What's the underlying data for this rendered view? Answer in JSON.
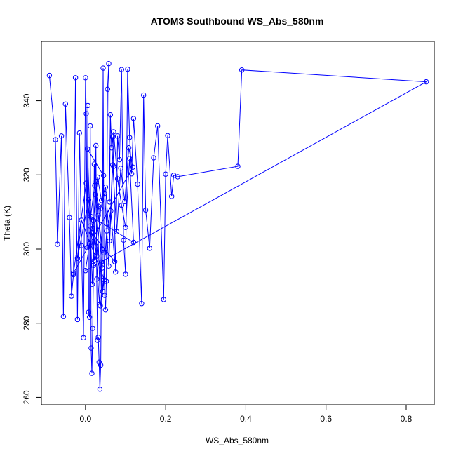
{
  "chart_data": {
    "type": "line",
    "title": "ATOM3 Southbound WS_Abs_580nm",
    "xlabel": "WS_Abs_580nm",
    "ylabel": "Theta (K)",
    "xlim": [
      -0.11,
      0.87
    ],
    "ylim": [
      258,
      356
    ],
    "xticks": [
      0.0,
      0.2,
      0.4,
      0.6,
      0.8
    ],
    "xtick_labels": [
      "0.0",
      "0.2",
      "0.4",
      "0.6",
      "0.8"
    ],
    "yticks": [
      260,
      280,
      300,
      320,
      340
    ],
    "ytick_labels": [
      "260",
      "280",
      "300",
      "320",
      "340"
    ],
    "grid": false,
    "series": [
      {
        "color": "#0000ff",
        "marker": "open-circle",
        "x": [
          -0.09,
          -0.075,
          -0.07,
          -0.06,
          -0.055,
          -0.05,
          -0.04,
          -0.035,
          -0.03,
          -0.025,
          -0.02,
          -0.015,
          -0.01,
          -0.005,
          0.0,
          0.002,
          0.004,
          0.006,
          0.008,
          0.01,
          0.012,
          0.014,
          0.016,
          0.018,
          0.02,
          0.022,
          0.024,
          0.026,
          0.028,
          0.03,
          0.032,
          0.034,
          0.036,
          0.038,
          0.04,
          0.042,
          0.044,
          0.046,
          0.048,
          0.05,
          0.052,
          0.055,
          0.058,
          0.06,
          0.062,
          0.065,
          0.068,
          0.07,
          0.075,
          0.08,
          0.085,
          0.09,
          0.095,
          0.1,
          0.105,
          0.11,
          0.115,
          0.12,
          0.13,
          0.14,
          0.145,
          0.15,
          0.16,
          0.17,
          0.18,
          0.195,
          0.2,
          0.205,
          0.215,
          0.22,
          0.23,
          0.38,
          0.39,
          0.85,
          0.0,
          0.01,
          0.02,
          0.03,
          0.04,
          0.05,
          0.06,
          0.07,
          0.08,
          0.09,
          0.1,
          0.11,
          0.12,
          0.013,
          0.023,
          0.033,
          0.043,
          0.053,
          0.063,
          0.073,
          0.015,
          0.025,
          0.035,
          0.045,
          0.005,
          0.017,
          0.027,
          0.037,
          0.047,
          -0.01,
          -0.02,
          0.008,
          0.018,
          0.028,
          0.038,
          0.048,
          0.058,
          0.068,
          0.078,
          0.088,
          0.098,
          0.108,
          0.118,
          -0.03,
          0.002,
          0.012,
          0.022,
          0.032,
          0.042
        ],
        "y": [
          346.8,
          329.5,
          301.3,
          330.5,
          281.8,
          339.1,
          308.5,
          287.3,
          293.1,
          346.2,
          281.0,
          331.3,
          300.9,
          276.1,
          346.2,
          336.5,
          300.4,
          338.7,
          283.0,
          281.6,
          333.2,
          273.3,
          266.5,
          278.6,
          295.6,
          322.9,
          314.7,
          327.9,
          291.9,
          275.4,
          276.2,
          269.5,
          262.2,
          268.7,
          296.5,
          294.9,
          348.8,
          299.0,
          287.5,
          283.6,
          291.3,
          343.1,
          350.0,
          312.7,
          336.2,
          327.3,
          330.2,
          322.3,
          293.8,
          330.5,
          324.1,
          348.4,
          302.4,
          293.2,
          348.5,
          330.1,
          320.3,
          335.2,
          317.5,
          285.3,
          341.5,
          310.5,
          300.2,
          324.6,
          333.2,
          286.4,
          320.2,
          330.6,
          314.2,
          319.9,
          319.5,
          322.3,
          348.3,
          345.1,
          294.2,
          301.4,
          307.6,
          319.4,
          313.1,
          316.7,
          302.2,
          331.6,
          318.9,
          311.8,
          305.8,
          324.4,
          301.8,
          308.8,
          317.2,
          311.5,
          288.6,
          304.9,
          310.3,
          296.6,
          304.4,
          300.8,
          285.0,
          319.8,
          327.0,
          290.5,
          318.2,
          284.7,
          291.7,
          307.8,
          297.5,
          313.3,
          305.6,
          298.1,
          311.0,
          315.0,
          295.4,
          322.7,
          304.7,
          321.8,
          312.8,
          327.3,
          322.1,
          293.5,
          317.8,
          306.2,
          296.9,
          309.1,
          299.8
        ]
      }
    ]
  }
}
